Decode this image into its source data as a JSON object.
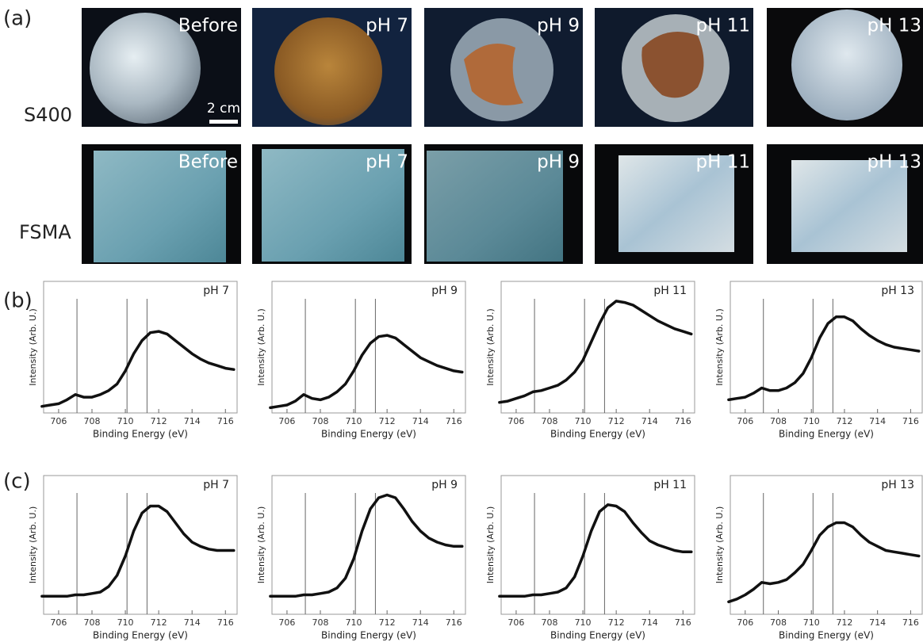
{
  "panel_labels": [
    "(a)",
    "(b)",
    "(c)"
  ],
  "photos": {
    "scale_bar": "2 cm",
    "rows": [
      {
        "label": "S400",
        "images": [
          "Before",
          "pH 7",
          "pH 9",
          "pH 11",
          "pH 13"
        ]
      },
      {
        "label": "FSMA",
        "images": [
          "Before",
          "pH 7",
          "pH 9",
          "pH 11",
          "pH 13"
        ]
      }
    ]
  },
  "chart_data": [
    {
      "type": "line",
      "title": "pH 7",
      "xlabel": "Binding Energy (eV)",
      "ylabel": "Intensity (Arb. U.)",
      "xlim": [
        705.1,
        716.7
      ],
      "ylim": [
        0,
        1
      ],
      "xticks": [
        706,
        708,
        710,
        712,
        714,
        716
      ],
      "vlines": [
        707.1,
        710.1,
        711.3
      ],
      "color": "#111111",
      "x": [
        705,
        705.5,
        706,
        706.5,
        707,
        707.5,
        708,
        708.5,
        709,
        709.5,
        710,
        710.5,
        711,
        711.5,
        712,
        712.5,
        713,
        713.5,
        714,
        714.5,
        715,
        715.5,
        716,
        716.5
      ],
      "values": [
        0.05,
        0.06,
        0.07,
        0.1,
        0.14,
        0.12,
        0.12,
        0.14,
        0.17,
        0.22,
        0.32,
        0.45,
        0.55,
        0.61,
        0.62,
        0.6,
        0.55,
        0.5,
        0.45,
        0.41,
        0.38,
        0.36,
        0.34,
        0.33
      ]
    },
    {
      "type": "line",
      "title": "pH 9",
      "xlabel": "Binding Energy (eV)",
      "ylabel": "Intensity (Arb. U.)",
      "xlim": [
        705.1,
        716.7
      ],
      "ylim": [
        0,
        1
      ],
      "xticks": [
        706,
        708,
        710,
        712,
        714,
        716
      ],
      "vlines": [
        707.1,
        710.1,
        711.3
      ],
      "color": "#111111",
      "x": [
        705,
        705.5,
        706,
        706.5,
        707,
        707.5,
        708,
        708.5,
        709,
        709.5,
        710,
        710.5,
        711,
        711.5,
        712,
        712.5,
        713,
        713.5,
        714,
        714.5,
        715,
        715.5,
        716,
        716.5
      ],
      "values": [
        0.04,
        0.05,
        0.06,
        0.09,
        0.14,
        0.11,
        0.1,
        0.12,
        0.16,
        0.22,
        0.32,
        0.44,
        0.53,
        0.58,
        0.59,
        0.57,
        0.52,
        0.47,
        0.42,
        0.39,
        0.36,
        0.34,
        0.32,
        0.31
      ]
    },
    {
      "type": "line",
      "title": "pH 11",
      "xlabel": "Binding Energy (eV)",
      "ylabel": "Intensity (Arb. U.)",
      "xlim": [
        705.1,
        716.7
      ],
      "ylim": [
        0,
        1
      ],
      "xticks": [
        706,
        708,
        710,
        712,
        714,
        716
      ],
      "vlines": [
        707.1,
        710.1,
        711.3
      ],
      "color": "#111111",
      "x": [
        705,
        705.5,
        706,
        706.5,
        707,
        707.5,
        708,
        708.5,
        709,
        709.5,
        710,
        710.5,
        711,
        711.5,
        712,
        712.5,
        713,
        713.5,
        714,
        714.5,
        715,
        715.5,
        716,
        716.5
      ],
      "values": [
        0.08,
        0.09,
        0.11,
        0.13,
        0.16,
        0.17,
        0.19,
        0.21,
        0.25,
        0.31,
        0.4,
        0.54,
        0.68,
        0.8,
        0.85,
        0.84,
        0.82,
        0.78,
        0.74,
        0.7,
        0.67,
        0.64,
        0.62,
        0.6
      ]
    },
    {
      "type": "line",
      "title": "pH 13",
      "xlabel": "Binding Energy (eV)",
      "ylabel": "Intensity (Arb. U.)",
      "xlim": [
        705.1,
        716.7
      ],
      "ylim": [
        0,
        1
      ],
      "xticks": [
        706,
        708,
        710,
        712,
        714,
        716
      ],
      "vlines": [
        707.1,
        710.1,
        711.3
      ],
      "color": "#111111",
      "x": [
        705,
        705.5,
        706,
        706.5,
        707,
        707.5,
        708,
        708.5,
        709,
        709.5,
        710,
        710.5,
        711,
        711.5,
        712,
        712.5,
        713,
        713.5,
        714,
        714.5,
        715,
        715.5,
        716,
        716.5
      ],
      "values": [
        0.1,
        0.11,
        0.12,
        0.15,
        0.19,
        0.17,
        0.17,
        0.19,
        0.23,
        0.3,
        0.42,
        0.57,
        0.68,
        0.73,
        0.73,
        0.7,
        0.64,
        0.59,
        0.55,
        0.52,
        0.5,
        0.49,
        0.48,
        0.47
      ]
    },
    {
      "type": "line",
      "title": "pH 7",
      "xlabel": "Binding Energy (eV)",
      "ylabel": "Intensity (Arb. U.)",
      "xlim": [
        705.1,
        716.7
      ],
      "ylim": [
        0,
        1
      ],
      "xticks": [
        706,
        708,
        710,
        712,
        714,
        716
      ],
      "vlines": [
        707.1,
        710.1,
        711.3
      ],
      "color": "#111111",
      "x": [
        705,
        705.5,
        706,
        706.5,
        707,
        707.5,
        708,
        708.5,
        709,
        709.5,
        710,
        710.5,
        711,
        711.5,
        712,
        712.5,
        713,
        713.5,
        714,
        714.5,
        715,
        715.5,
        716,
        716.5
      ],
      "values": [
        0.13,
        0.13,
        0.13,
        0.13,
        0.14,
        0.14,
        0.15,
        0.16,
        0.2,
        0.28,
        0.42,
        0.6,
        0.73,
        0.78,
        0.78,
        0.74,
        0.66,
        0.58,
        0.52,
        0.49,
        0.47,
        0.46,
        0.46,
        0.46
      ]
    },
    {
      "type": "line",
      "title": "pH 9",
      "xlabel": "Binding Energy (eV)",
      "ylabel": "Intensity (Arb. U.)",
      "xlim": [
        705.1,
        716.7
      ],
      "ylim": [
        0,
        1
      ],
      "xticks": [
        706,
        708,
        710,
        712,
        714,
        716
      ],
      "vlines": [
        707.1,
        710.1,
        711.3
      ],
      "color": "#111111",
      "x": [
        705,
        705.5,
        706,
        706.5,
        707,
        707.5,
        708,
        708.5,
        709,
        709.5,
        710,
        710.5,
        711,
        711.5,
        712,
        712.5,
        713,
        713.5,
        714,
        714.5,
        715,
        715.5,
        716,
        716.5
      ],
      "values": [
        0.13,
        0.13,
        0.13,
        0.13,
        0.14,
        0.14,
        0.15,
        0.16,
        0.19,
        0.26,
        0.4,
        0.6,
        0.76,
        0.84,
        0.86,
        0.84,
        0.76,
        0.67,
        0.6,
        0.55,
        0.52,
        0.5,
        0.49,
        0.49
      ]
    },
    {
      "type": "line",
      "title": "pH 11",
      "xlabel": "Binding Energy (eV)",
      "ylabel": "Intensity (Arb. U.)",
      "xlim": [
        705.1,
        716.7
      ],
      "ylim": [
        0,
        1
      ],
      "xticks": [
        706,
        708,
        710,
        712,
        714,
        716
      ],
      "vlines": [
        707.1,
        710.1,
        711.3
      ],
      "color": "#111111",
      "x": [
        705,
        705.5,
        706,
        706.5,
        707,
        707.5,
        708,
        708.5,
        709,
        709.5,
        710,
        710.5,
        711,
        711.5,
        712,
        712.5,
        713,
        713.5,
        714,
        714.5,
        715,
        715.5,
        716,
        716.5
      ],
      "values": [
        0.13,
        0.13,
        0.13,
        0.13,
        0.14,
        0.14,
        0.15,
        0.16,
        0.19,
        0.27,
        0.42,
        0.6,
        0.74,
        0.79,
        0.78,
        0.74,
        0.66,
        0.59,
        0.53,
        0.5,
        0.48,
        0.46,
        0.45,
        0.45
      ]
    },
    {
      "type": "line",
      "title": "pH 13",
      "xlabel": "Binding Energy (eV)",
      "ylabel": "Intensity (Arb. U.)",
      "xlim": [
        705.1,
        716.7
      ],
      "ylim": [
        0,
        1
      ],
      "xticks": [
        706,
        708,
        710,
        712,
        714,
        716
      ],
      "vlines": [
        707.1,
        710.1,
        711.3
      ],
      "color": "#111111",
      "x": [
        705,
        705.5,
        706,
        706.5,
        707,
        707.5,
        708,
        708.5,
        709,
        709.5,
        710,
        710.5,
        711,
        711.5,
        712,
        712.5,
        713,
        713.5,
        714,
        714.5,
        715,
        715.5,
        716,
        716.5
      ],
      "values": [
        0.09,
        0.11,
        0.14,
        0.18,
        0.23,
        0.22,
        0.23,
        0.25,
        0.3,
        0.36,
        0.46,
        0.57,
        0.63,
        0.66,
        0.66,
        0.63,
        0.57,
        0.52,
        0.49,
        0.46,
        0.45,
        0.44,
        0.43,
        0.42
      ]
    }
  ]
}
